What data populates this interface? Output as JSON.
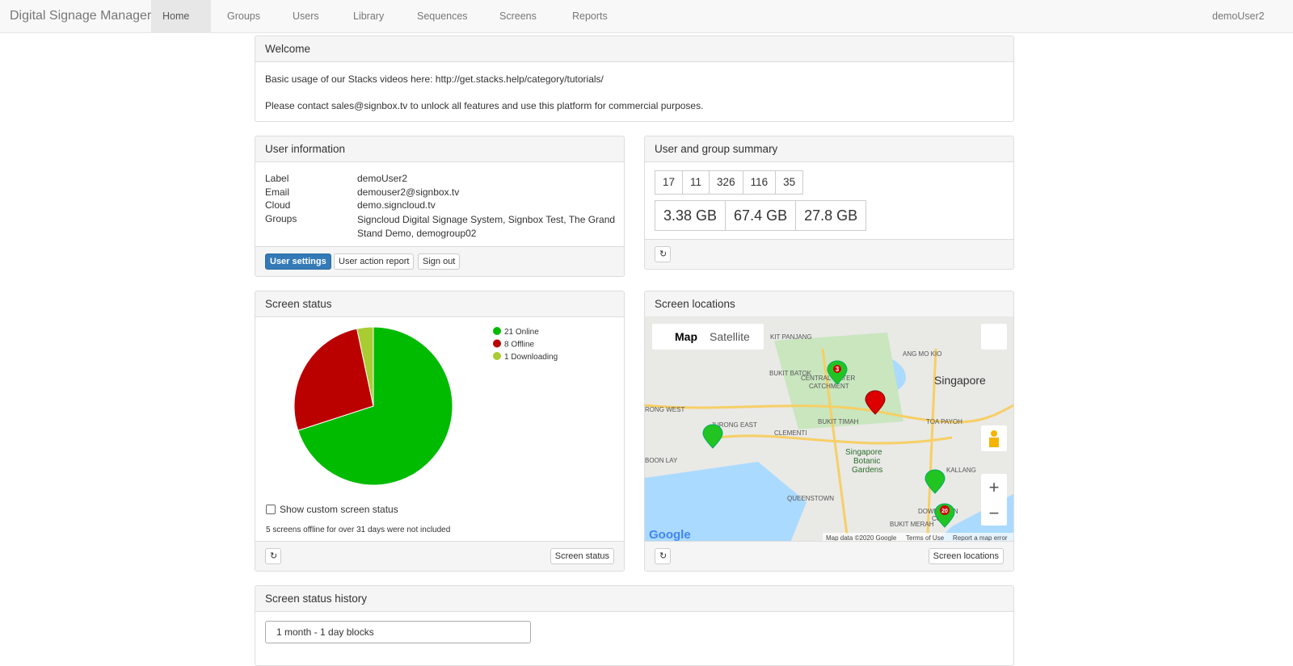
{
  "navbar": {
    "brand": "Digital Signage Manager",
    "items": [
      "Home",
      "Groups",
      "Users",
      "Library",
      "Sequences",
      "Screens",
      "Reports"
    ],
    "user": "demoUser2"
  },
  "welcome": {
    "title": "Welcome",
    "lines": [
      "Basic usage of our Stacks videos here: http://get.stacks.help/category/tutorials/",
      "Please contact sales@signbox.tv to unlock all features and use this platform for commercial purposes."
    ]
  },
  "user_info": {
    "title": "User information",
    "rows": [
      [
        "Label",
        "demoUser2"
      ],
      [
        "Email",
        "demouser2@signbox.tv"
      ],
      [
        "Cloud",
        "demo.signcloud.tv"
      ],
      [
        "Groups",
        "Signcloud Digital Signage System, Signbox Test, The Grand Stand Demo, demogroup02"
      ]
    ],
    "buttons": [
      "User settings",
      "User action report",
      "Sign out"
    ]
  },
  "summary": {
    "title": "User and group summary",
    "counts": [
      17,
      11,
      326,
      116,
      35
    ],
    "storage": [
      "3.38 GB",
      "67.4 GB",
      "27.8 GB"
    ]
  },
  "screen_status": {
    "title": "Screen status",
    "chart": {
      "type": "pie",
      "series": [
        {
          "name": "Online",
          "label": "21 Online",
          "value": 21,
          "color": "#00bb00"
        },
        {
          "name": "Offline",
          "label": "8 Offline",
          "value": 8,
          "color": "#bb0000"
        },
        {
          "name": "Downloading",
          "label": "1 Downloading",
          "value": 1,
          "color": "#aacc33"
        }
      ]
    },
    "checkbox": "Show custom screen status",
    "note": "5 screens offline for over 31 days were not included",
    "button": "Screen status"
  },
  "screen_locations": {
    "title": "Screen locations",
    "map_buttons": [
      "Map",
      "Satellite"
    ],
    "labels": [
      "KIT PANJANG",
      "ANG MO KIO",
      "Singapore",
      "BUKIT BATOK",
      "CENTRAL WATER",
      "CATCHMENT",
      "RONG WEST",
      "JURONG EAST",
      "BUKIT TIMAH",
      "TOA PAYOH",
      "CLEMENTI",
      "Singapore",
      "Botanic",
      "Gardens",
      "KALLANG",
      "BOON LAY",
      "QUEENSTOWN",
      "DOWNTOWN",
      "CORE",
      "BUKIT MERAH"
    ],
    "markers": [
      "3",
      "20"
    ],
    "logo": "Google",
    "attribution": [
      "Map data ©2020 Google",
      "Terms of Use",
      "Report a map error"
    ],
    "button": "Screen locations"
  },
  "history": {
    "title": "Screen status history",
    "select": "1 month - 1 day blocks"
  }
}
